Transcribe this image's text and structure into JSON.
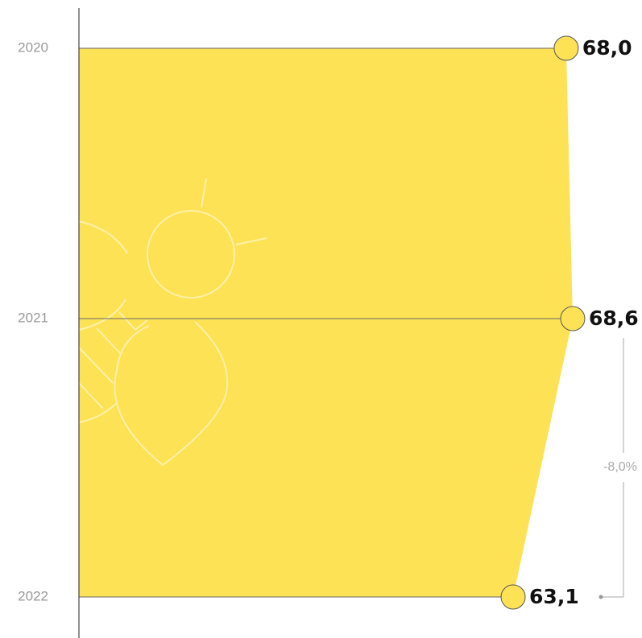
{
  "chart_data": {
    "type": "area",
    "orientation": "horizontal",
    "categories": [
      "2020",
      "2021",
      "2022"
    ],
    "values": [
      68.0,
      68.6,
      63.1
    ],
    "value_labels": [
      "68,0",
      "68,6",
      "63,1"
    ],
    "color": "#fde256",
    "xlim": [
      23,
      75
    ],
    "annotation": "-8,0%"
  }
}
